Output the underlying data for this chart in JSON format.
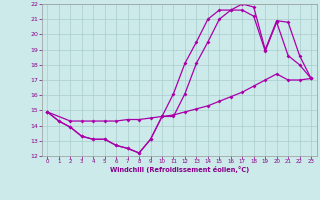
{
  "xlabel": "Windchill (Refroidissement éolien,°C)",
  "bg_color": "#cceaea",
  "grid_color": "#aacccc",
  "line_color": "#aa00aa",
  "xlim": [
    -0.5,
    23.5
  ],
  "ylim": [
    12,
    22
  ],
  "xticks": [
    0,
    1,
    2,
    3,
    4,
    5,
    6,
    7,
    8,
    9,
    10,
    11,
    12,
    13,
    14,
    15,
    16,
    17,
    18,
    19,
    20,
    21,
    22,
    23
  ],
  "yticks": [
    12,
    13,
    14,
    15,
    16,
    17,
    18,
    19,
    20,
    21,
    22
  ],
  "curve1_x": [
    0,
    1,
    2,
    3,
    4,
    5,
    6,
    7,
    8,
    9,
    10,
    11,
    12,
    13,
    14,
    15,
    16,
    17,
    18,
    19,
    20,
    21,
    22,
    23
  ],
  "curve1_y": [
    14.9,
    14.3,
    13.9,
    13.3,
    13.1,
    13.1,
    12.7,
    12.5,
    12.2,
    13.1,
    14.6,
    14.6,
    16.1,
    18.1,
    19.5,
    21.0,
    21.6,
    21.6,
    21.2,
    18.9,
    20.8,
    18.6,
    18.0,
    17.1
  ],
  "curve2_x": [
    0,
    2,
    3,
    4,
    5,
    6,
    7,
    8,
    9,
    10,
    11,
    12,
    13,
    14,
    15,
    16,
    17,
    18,
    19,
    20,
    21,
    22,
    23
  ],
  "curve2_y": [
    14.9,
    14.3,
    14.3,
    14.3,
    14.3,
    14.3,
    14.4,
    14.4,
    14.5,
    14.6,
    14.7,
    14.9,
    15.1,
    15.3,
    15.6,
    15.9,
    16.2,
    16.6,
    17.0,
    17.4,
    17.0,
    17.0,
    17.1
  ],
  "curve3_x": [
    0,
    1,
    2,
    3,
    4,
    5,
    6,
    7,
    8,
    9,
    10,
    11,
    12,
    13,
    14,
    15,
    16,
    17,
    18,
    19,
    20,
    21,
    22,
    23
  ],
  "curve3_y": [
    14.9,
    14.3,
    13.9,
    13.3,
    13.1,
    13.1,
    12.7,
    12.5,
    12.2,
    13.1,
    14.6,
    16.1,
    18.1,
    19.5,
    21.0,
    21.6,
    21.6,
    22.0,
    21.8,
    19.0,
    20.9,
    20.8,
    18.6,
    17.1
  ]
}
